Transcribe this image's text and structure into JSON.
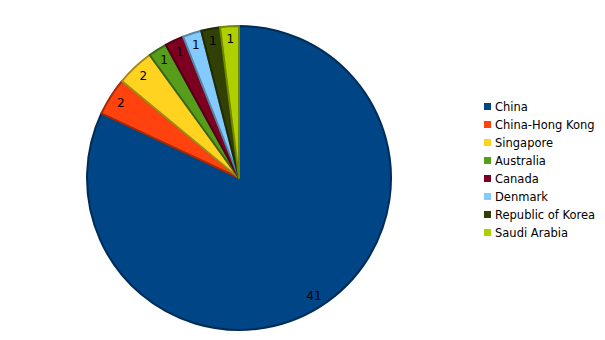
{
  "chart_data": {
    "type": "pie",
    "categories": [
      "China",
      "China-Hong Kong",
      "Singapore",
      "Australia",
      "Canada",
      "Denmark",
      "Republic of Korea",
      "Saudi Arabia"
    ],
    "values": [
      41,
      2,
      2,
      1,
      1,
      1,
      1,
      1
    ],
    "colors": [
      "#004586",
      "#ff420e",
      "#ffd320",
      "#579d1c",
      "#7e0021",
      "#83caff",
      "#314004",
      "#aecf00"
    ],
    "data_labels": true,
    "legend": "right"
  }
}
